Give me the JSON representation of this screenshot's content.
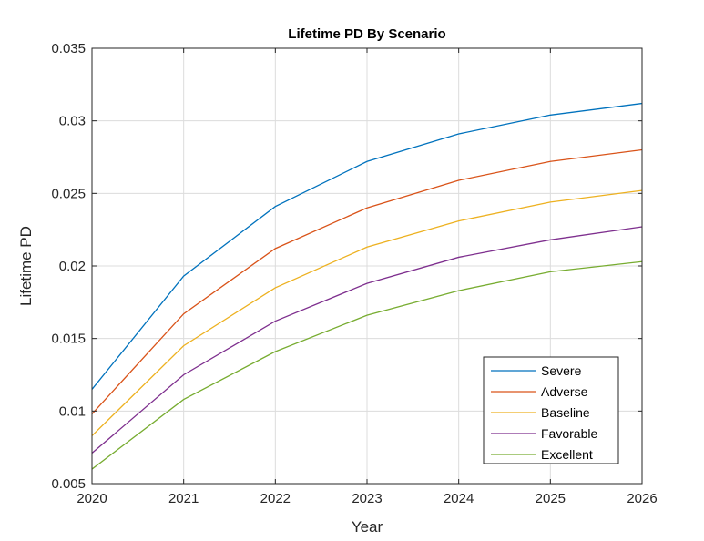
{
  "chart_data": {
    "type": "line",
    "title": "Lifetime PD By Scenario",
    "xlabel": "Year",
    "ylabel": "Lifetime PD",
    "xlim": [
      2020,
      2026
    ],
    "ylim": [
      0.005,
      0.035
    ],
    "xticks": [
      "2020",
      "2021",
      "2022",
      "2023",
      "2024",
      "2025",
      "2026"
    ],
    "yticks": [
      "0.005",
      "0.01",
      "0.015",
      "0.02",
      "0.025",
      "0.03",
      "0.035"
    ],
    "grid": true,
    "legend_position": "bottom-right",
    "x": [
      2020,
      2021,
      2022,
      2023,
      2024,
      2025,
      2026
    ],
    "series": [
      {
        "name": "Severe",
        "color": "#0072BD",
        "values": [
          0.0115,
          0.0193,
          0.0241,
          0.0272,
          0.0291,
          0.0304,
          0.0312
        ]
      },
      {
        "name": "Adverse",
        "color": "#D95319",
        "values": [
          0.0098,
          0.0167,
          0.0212,
          0.024,
          0.0259,
          0.0272,
          0.028
        ]
      },
      {
        "name": "Baseline",
        "color": "#EDB120",
        "values": [
          0.0083,
          0.0145,
          0.0185,
          0.0213,
          0.0231,
          0.0244,
          0.0252
        ]
      },
      {
        "name": "Favorable",
        "color": "#7E2F8E",
        "values": [
          0.0071,
          0.0125,
          0.0162,
          0.0188,
          0.0206,
          0.0218,
          0.0227
        ]
      },
      {
        "name": "Excellent",
        "color": "#77AC30",
        "values": [
          0.006,
          0.0108,
          0.0141,
          0.0166,
          0.0183,
          0.0196,
          0.0203
        ]
      }
    ]
  }
}
